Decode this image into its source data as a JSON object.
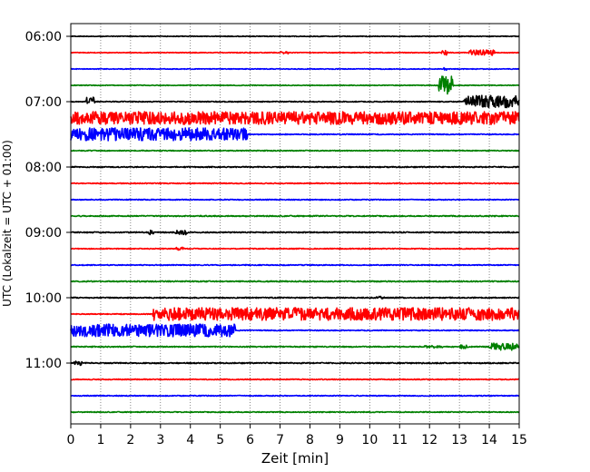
{
  "chart_data": {
    "type": "line",
    "title": "",
    "xlabel": "Zeit  [min]",
    "ylabel": "UTC (Lokalzeit = UTC + 01:00)",
    "xlim": [
      0,
      15
    ],
    "x_ticks": [
      "0",
      "1",
      "2",
      "3",
      "4",
      "5",
      "6",
      "7",
      "8",
      "9",
      "10",
      "11",
      "12",
      "13",
      "14",
      "15"
    ],
    "y_ticks": [
      "06:00",
      "07:00",
      "08:00",
      "09:00",
      "10:00",
      "11:00"
    ],
    "grid": "vertical dotted at every minute",
    "color_cycle": [
      "#000000",
      "#ff0000",
      "#0000ff",
      "#008000"
    ],
    "traces": [
      {
        "start": "06:00",
        "color": "#000000",
        "noise": 0.4,
        "events": []
      },
      {
        "start": "06:15",
        "color": "#ff0000",
        "noise": 0.4,
        "events": [
          {
            "t0": 7.0,
            "t1": 7.3,
            "amp": 1.5
          },
          {
            "t0": 12.4,
            "t1": 12.6,
            "amp": 3
          },
          {
            "t0": 13.3,
            "t1": 14.2,
            "amp": 3
          }
        ]
      },
      {
        "start": "06:30",
        "color": "#0000ff",
        "noise": 0.4,
        "events": [
          {
            "t0": 12.45,
            "t1": 12.6,
            "amp": 1.5
          }
        ]
      },
      {
        "start": "06:45",
        "color": "#008000",
        "noise": 0.4,
        "events": [
          {
            "t0": 12.3,
            "t1": 12.8,
            "amp": 10
          }
        ]
      },
      {
        "start": "07:00",
        "color": "#000000",
        "noise": 0.5,
        "events": [
          {
            "t0": 0.5,
            "t1": 0.8,
            "amp": 5
          },
          {
            "t0": 13.15,
            "t1": 15.0,
            "amp": 7
          }
        ]
      },
      {
        "start": "07:15",
        "color": "#ff0000",
        "noise": 0.5,
        "events": [
          {
            "t0": 0.0,
            "t1": 15.0,
            "amp": 7
          }
        ]
      },
      {
        "start": "07:30",
        "color": "#0000ff",
        "noise": 0.5,
        "events": [
          {
            "t0": 0.0,
            "t1": 5.9,
            "amp": 7
          }
        ]
      },
      {
        "start": "07:45",
        "color": "#008000",
        "noise": 0.5,
        "events": []
      },
      {
        "start": "08:00",
        "color": "#000000",
        "noise": 0.6,
        "events": []
      },
      {
        "start": "08:15",
        "color": "#ff0000",
        "noise": 0.5,
        "events": []
      },
      {
        "start": "08:30",
        "color": "#0000ff",
        "noise": 0.5,
        "events": []
      },
      {
        "start": "08:45",
        "color": "#008000",
        "noise": 0.6,
        "events": []
      },
      {
        "start": "09:00",
        "color": "#000000",
        "noise": 0.6,
        "events": [
          {
            "t0": 2.6,
            "t1": 2.8,
            "amp": 2.5
          },
          {
            "t0": 3.5,
            "t1": 3.9,
            "amp": 3
          }
        ]
      },
      {
        "start": "09:15",
        "color": "#ff0000",
        "noise": 0.5,
        "events": [
          {
            "t0": 3.5,
            "t1": 3.8,
            "amp": 2
          }
        ]
      },
      {
        "start": "09:30",
        "color": "#0000ff",
        "noise": 0.5,
        "events": []
      },
      {
        "start": "09:45",
        "color": "#008000",
        "noise": 0.6,
        "events": []
      },
      {
        "start": "10:00",
        "color": "#000000",
        "noise": 0.6,
        "events": [
          {
            "t0": 10.2,
            "t1": 10.5,
            "amp": 1.5
          }
        ]
      },
      {
        "start": "10:15",
        "color": "#ff0000",
        "noise": 0.5,
        "events": [
          {
            "t0": 2.75,
            "t1": 15.0,
            "amp": 7
          }
        ]
      },
      {
        "start": "10:30",
        "color": "#0000ff",
        "noise": 0.5,
        "events": [
          {
            "t0": 0.0,
            "t1": 5.5,
            "amp": 7
          }
        ]
      },
      {
        "start": "10:45",
        "color": "#008000",
        "noise": 0.6,
        "events": [
          {
            "t0": 11.8,
            "t1": 12.5,
            "amp": 1.5
          },
          {
            "t0": 13.0,
            "t1": 13.3,
            "amp": 2
          },
          {
            "t0": 14.0,
            "t1": 15.0,
            "amp": 4
          }
        ]
      },
      {
        "start": "11:00",
        "color": "#000000",
        "noise": 0.6,
        "events": [
          {
            "t0": 0.1,
            "t1": 0.4,
            "amp": 2.5
          }
        ]
      },
      {
        "start": "11:15",
        "color": "#ff0000",
        "noise": 0.5,
        "events": []
      },
      {
        "start": "11:30",
        "color": "#0000ff",
        "noise": 0.5,
        "events": []
      },
      {
        "start": "11:45",
        "color": "#008000",
        "noise": 0.5,
        "events": []
      }
    ]
  }
}
